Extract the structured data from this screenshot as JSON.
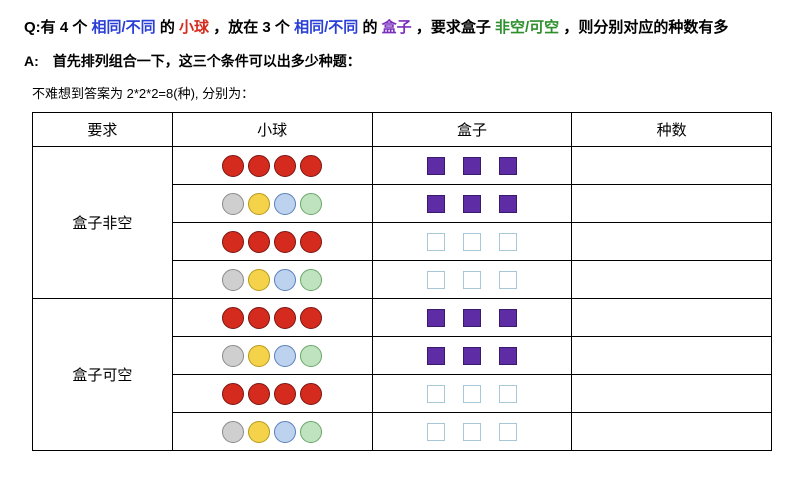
{
  "question": {
    "prefix": "Q:有 4 个",
    "alt1": "相同/不同",
    "mid1": "的",
    "ball_word": "小球",
    "mid2": "，放在 3 个",
    "alt2": "相同/不同",
    "mid3": "的",
    "box_word": "盒子",
    "mid4": "，要求盒子",
    "alt3": "非空/可空",
    "suffix": "，则分别对应的种数有多"
  },
  "answer_line": "A:　首先排列组合一下，这三个条件可以出多少种题：",
  "sub_line": "不难想到答案为 2*2*2=8(种), 分别为：",
  "colors": {
    "blue": "#2a3fd6",
    "red": "#d52b1e",
    "purple": "#7a2fbf",
    "green": "#2f8f2f",
    "ball_red_fill": "#d52b1e",
    "ball_red_stroke": "#7a1510",
    "ball_grey_fill": "#cfcfcf",
    "ball_grey_stroke": "#8a8a8a",
    "ball_yellow_fill": "#f4d24a",
    "ball_yellow_stroke": "#b89a1e",
    "ball_blue_fill": "#bcd2ef",
    "ball_blue_stroke": "#5a7fb8",
    "ball_green_fill": "#bfe2bf",
    "ball_green_stroke": "#6aa66a",
    "box_purple_fill": "#5e2ca5",
    "box_purple_stroke": "#3a1a6b",
    "box_empty_stroke": "#a8c8d8",
    "box_empty_fill": "#eaf3ef"
  },
  "headers": {
    "req": "要求",
    "ball": "小球",
    "box": "盒子",
    "count": "种数"
  },
  "group_labels": {
    "nonempty": "盒子非空",
    "canempty": "盒子可空"
  },
  "rows": [
    {
      "group": "nonempty",
      "balls": "same",
      "boxes": "same"
    },
    {
      "group": "nonempty",
      "balls": "diff",
      "boxes": "same"
    },
    {
      "group": "nonempty",
      "balls": "same",
      "boxes": "diff"
    },
    {
      "group": "nonempty",
      "balls": "diff",
      "boxes": "diff"
    },
    {
      "group": "canempty",
      "balls": "same",
      "boxes": "same"
    },
    {
      "group": "canempty",
      "balls": "diff",
      "boxes": "same"
    },
    {
      "group": "canempty",
      "balls": "same",
      "boxes": "diff"
    },
    {
      "group": "canempty",
      "balls": "diff",
      "boxes": "diff"
    }
  ],
  "ball_variants": {
    "same": [
      "red",
      "red",
      "red",
      "red"
    ],
    "diff": [
      "grey",
      "yellow",
      "blue",
      "green"
    ]
  },
  "box_variants": {
    "same": "filled",
    "diff": "empty"
  }
}
